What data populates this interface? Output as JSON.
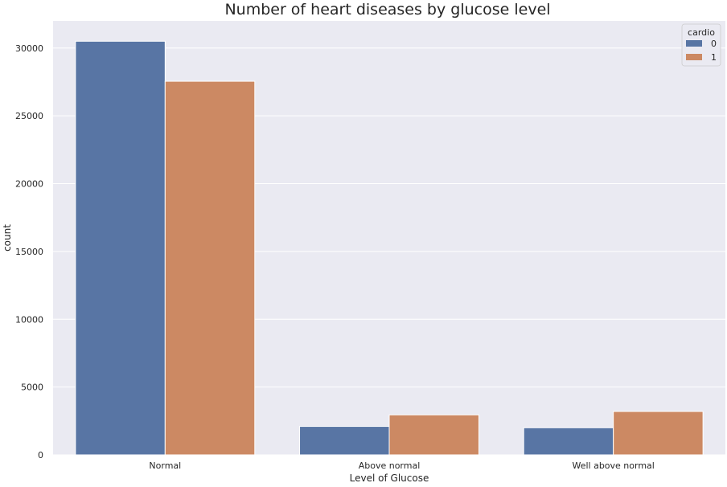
{
  "chart_data": {
    "type": "bar",
    "title": "Number of heart diseases by glucose level",
    "xlabel": "Level of Glucose",
    "ylabel": "count",
    "categories": [
      "Normal",
      "Above normal",
      "Well above normal"
    ],
    "series": [
      {
        "name": "0",
        "values": [
          30500,
          2100,
          2000
        ],
        "color": "#5875a4"
      },
      {
        "name": "1",
        "values": [
          27550,
          2950,
          3200
        ],
        "color": "#cc8963"
      }
    ],
    "yticks": [
      "0",
      "5000",
      "10000",
      "15000",
      "20000",
      "25000",
      "30000"
    ],
    "ylim": [
      0,
      32000
    ],
    "grid": true,
    "legend": {
      "title": "cardio",
      "placement": "top-right"
    },
    "background": "#eaeaf2",
    "grid_color": "#ffffff"
  }
}
